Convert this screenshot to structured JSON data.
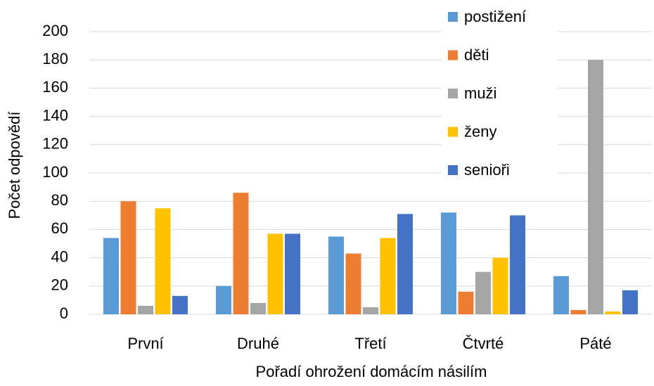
{
  "chart_data": {
    "type": "bar",
    "x_label": "Pořadí ohrožení domácím násilím",
    "y_label": "Počet odpovědí",
    "categories": [
      "První",
      "Druhé",
      "Třetí",
      "Čtvrté",
      "Páté"
    ],
    "series": [
      {
        "name": "postižení",
        "color": "#5b9bd5",
        "values": [
          54,
          20,
          55,
          72,
          27
        ]
      },
      {
        "name": "děti",
        "color": "#ed7d31",
        "values": [
          80,
          86,
          43,
          16,
          3
        ]
      },
      {
        "name": "muži",
        "color": "#a5a5a5",
        "values": [
          6,
          8,
          5,
          30,
          180
        ]
      },
      {
        "name": "ženy",
        "color": "#ffc000",
        "values": [
          75,
          57,
          54,
          40,
          2
        ]
      },
      {
        "name": "senioři",
        "color": "#4472c4",
        "values": [
          13,
          57,
          71,
          70,
          17
        ]
      }
    ],
    "ylim": [
      0,
      200
    ],
    "yticks": [
      0,
      20,
      40,
      60,
      80,
      100,
      120,
      140,
      160,
      180,
      200
    ],
    "grid": true,
    "legend": "top-right"
  }
}
